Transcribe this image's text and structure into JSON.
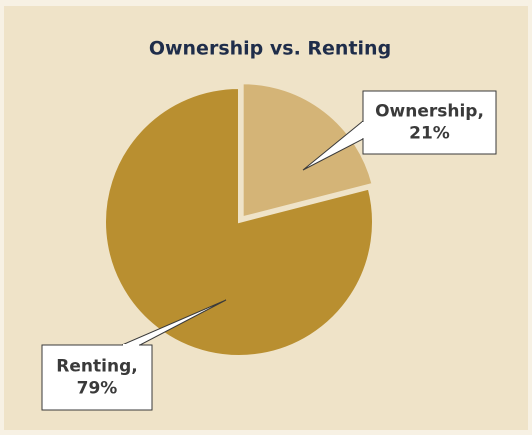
{
  "chart_data": {
    "type": "pie",
    "title": "Ownership vs. Renting",
    "categories": [
      "Ownership",
      "Renting"
    ],
    "values": [
      21,
      79
    ],
    "value_labels": [
      [
        "Ownership,",
        "21%"
      ],
      [
        "Renting,",
        "79%"
      ]
    ],
    "colors": [
      "#d4b477",
      "#b98f30"
    ],
    "exploded": [
      true,
      false
    ]
  }
}
